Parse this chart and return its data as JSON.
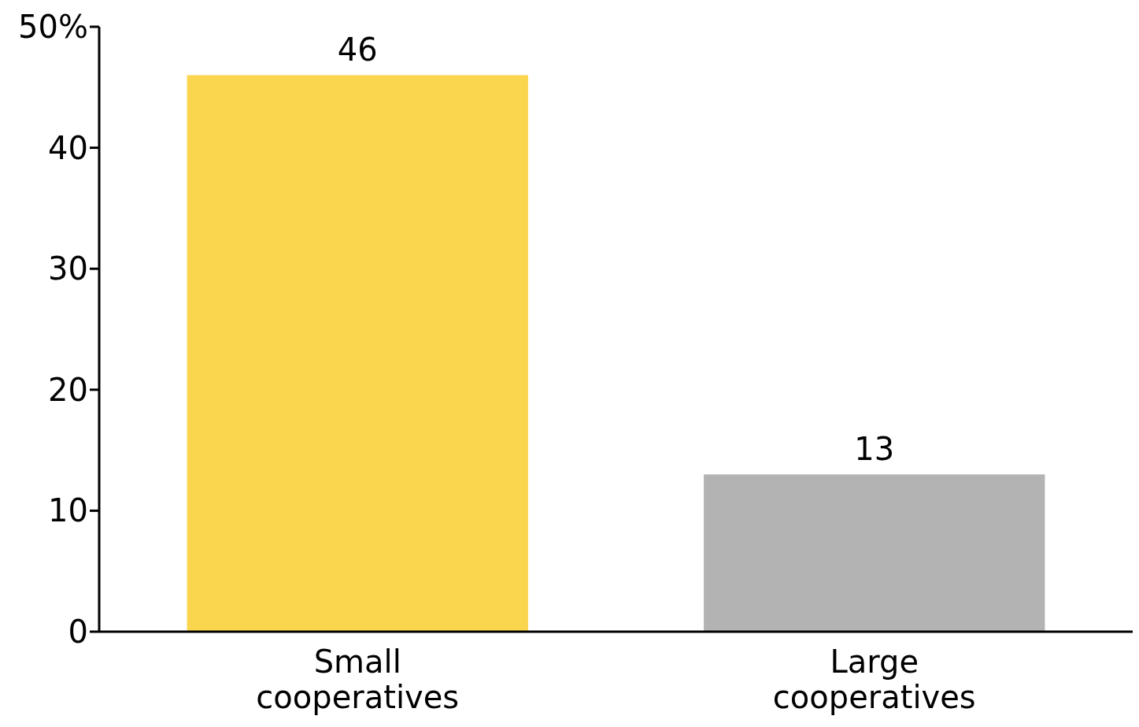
{
  "chart_data": {
    "type": "bar",
    "categories": [
      "Small cooperatives",
      "Large cooperatives"
    ],
    "values": [
      46,
      13
    ],
    "colors": [
      "#fad54e",
      "#b3b3b3"
    ],
    "ylim": [
      0,
      50
    ],
    "yticks": [
      0,
      10,
      20,
      30,
      40,
      {
        "value": 50,
        "label": "50%"
      }
    ],
    "data_labels": true,
    "grid": false
  }
}
